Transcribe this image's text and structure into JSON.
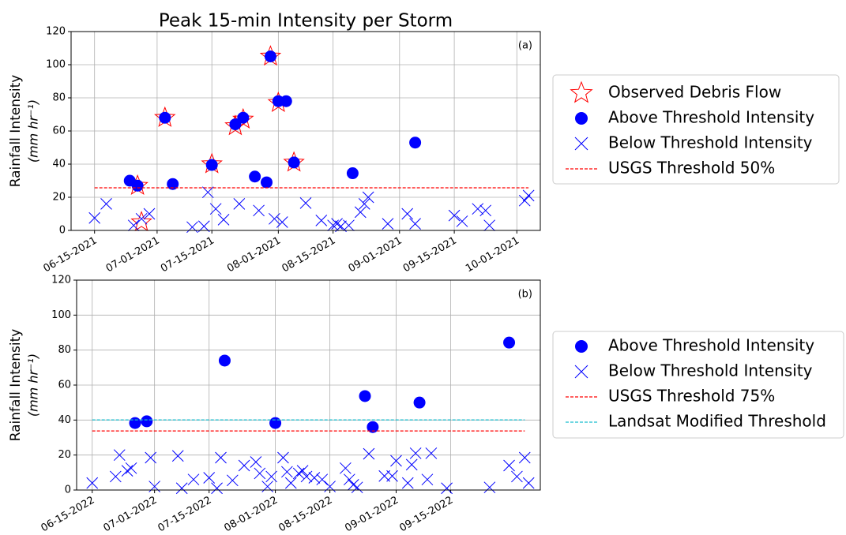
{
  "chart_data": [
    {
      "type": "scatter",
      "title": "Peak 15-min Intensity per Storm",
      "annotation": "(a)",
      "ylabel": "Rainfall Intensity",
      "ylabel_units": "(mm hr⁻¹)",
      "xlim": [
        "2021-06-09",
        "2021-10-07"
      ],
      "ylim": [
        0,
        120
      ],
      "yticks": [
        0,
        20,
        40,
        60,
        80,
        100,
        120
      ],
      "xticks": [
        {
          "value": "2021-06-15",
          "label": "06-15-2021"
        },
        {
          "value": "2021-07-01",
          "label": "07-01-2021"
        },
        {
          "value": "2021-07-15",
          "label": "07-15-2021"
        },
        {
          "value": "2021-08-01",
          "label": "08-01-2021"
        },
        {
          "value": "2021-08-15",
          "label": "08-15-2021"
        },
        {
          "value": "2021-09-01",
          "label": "09-01-2021"
        },
        {
          "value": "2021-09-15",
          "label": "09-15-2021"
        },
        {
          "value": "2021-10-01",
          "label": "10-01-2021"
        }
      ],
      "grid": true,
      "legend": "outside right",
      "series": [
        {
          "name": "Observed Debris Flow",
          "marker": "star",
          "color": "#ff0000",
          "x": [
            "2021-06-26",
            "2021-06-27",
            "2021-07-03",
            "2021-07-15",
            "2021-07-21",
            "2021-07-23",
            "2021-07-30",
            "2021-08-01",
            "2021-08-05"
          ],
          "values": [
            27,
            5,
            68,
            40,
            63,
            67,
            105,
            77,
            41
          ]
        },
        {
          "name": "Above Threshold Intensity",
          "marker": "circle",
          "color": "#0000ff",
          "x": [
            "2021-06-24",
            "2021-06-26",
            "2021-07-03",
            "2021-07-05",
            "2021-07-15",
            "2021-07-21",
            "2021-07-23",
            "2021-07-26",
            "2021-07-29",
            "2021-07-30",
            "2021-08-01",
            "2021-08-03",
            "2021-08-05",
            "2021-08-20",
            "2021-09-05"
          ],
          "values": [
            30,
            27,
            68,
            28,
            39.5,
            64,
            68,
            32.5,
            29,
            105,
            78,
            78,
            41,
            34.5,
            53
          ]
        },
        {
          "name": "Below Threshold Intensity",
          "marker": "x",
          "color": "#0000ff",
          "x": [
            "2021-06-15",
            "2021-06-18",
            "2021-06-25",
            "2021-06-27",
            "2021-06-29",
            "2021-07-10",
            "2021-07-13",
            "2021-07-14",
            "2021-07-16",
            "2021-07-18",
            "2021-07-22",
            "2021-07-27",
            "2021-07-31",
            "2021-08-02",
            "2021-08-08",
            "2021-08-12",
            "2021-08-15",
            "2021-08-16",
            "2021-08-17",
            "2021-08-19",
            "2021-08-22",
            "2021-08-23",
            "2021-08-24",
            "2021-08-29",
            "2021-09-03",
            "2021-09-05",
            "2021-09-15",
            "2021-09-17",
            "2021-09-21",
            "2021-09-23",
            "2021-09-24",
            "2021-10-03",
            "2021-10-04"
          ],
          "values": [
            7.5,
            16,
            3,
            7,
            10,
            2,
            2.5,
            23,
            13,
            6.5,
            16,
            12,
            7,
            5,
            16.5,
            6,
            3,
            4,
            2.5,
            3,
            11,
            16,
            20,
            4,
            10,
            4,
            9,
            5.5,
            13,
            12,
            3,
            18,
            21
          ]
        },
        {
          "name": "USGS Threshold 50%",
          "marker": "dash",
          "color": "#ff0000",
          "x": [
            "2021-06-15",
            "2021-10-04"
          ],
          "values": [
            25.7,
            25.7
          ]
        }
      ]
    },
    {
      "type": "scatter",
      "annotation": "(b)",
      "ylabel": "Rainfall Intensity",
      "ylabel_units": "(mm hr⁻¹)",
      "xlim": [
        "2022-06-11",
        "2022-10-08"
      ],
      "ylim": [
        0,
        120
      ],
      "yticks": [
        0,
        20,
        40,
        60,
        80,
        100,
        120
      ],
      "xticks": [
        {
          "value": "2022-06-15",
          "label": "06-15-2022"
        },
        {
          "value": "2022-07-01",
          "label": "07-01-2022"
        },
        {
          "value": "2022-07-15",
          "label": "07-15-2022"
        },
        {
          "value": "2022-08-01",
          "label": "08-01-2022"
        },
        {
          "value": "2022-08-15",
          "label": "08-15-2022"
        },
        {
          "value": "2022-09-01",
          "label": "09-01-2022"
        },
        {
          "value": "2022-09-15",
          "label": "09-15-2022"
        }
      ],
      "grid": true,
      "legend": "outside right",
      "series": [
        {
          "name": "Above Threshold Intensity",
          "marker": "circle",
          "color": "#0000ff",
          "x": [
            "2022-06-26",
            "2022-06-29",
            "2022-07-19",
            "2022-08-01",
            "2022-08-24",
            "2022-08-26",
            "2022-09-07",
            "2022-09-30"
          ],
          "values": [
            38.3,
            39.3,
            74,
            38.3,
            53.7,
            36,
            50,
            84.3
          ]
        },
        {
          "name": "Below Threshold Intensity",
          "marker": "x",
          "color": "#0000ff",
          "x": [
            "2022-06-15",
            "2022-06-21",
            "2022-06-22",
            "2022-06-24",
            "2022-06-25",
            "2022-06-30",
            "2022-07-01",
            "2022-07-07",
            "2022-07-08",
            "2022-07-11",
            "2022-07-15",
            "2022-07-17",
            "2022-07-18",
            "2022-07-21",
            "2022-07-24",
            "2022-07-27",
            "2022-07-28",
            "2022-07-30",
            "2022-07-31",
            "2022-08-03",
            "2022-08-04",
            "2022-08-05",
            "2022-08-07",
            "2022-08-08",
            "2022-08-09",
            "2022-08-11",
            "2022-08-13",
            "2022-08-15",
            "2022-08-19",
            "2022-08-20",
            "2022-08-21",
            "2022-08-22",
            "2022-08-25",
            "2022-08-29",
            "2022-08-31",
            "2022-09-01",
            "2022-09-04",
            "2022-09-05",
            "2022-09-06",
            "2022-09-09",
            "2022-09-10",
            "2022-09-14",
            "2022-09-25",
            "2022-09-30",
            "2022-10-02",
            "2022-10-04",
            "2022-10-05"
          ],
          "values": [
            4,
            7.7,
            20,
            11,
            12.5,
            18.5,
            2,
            19.5,
            1,
            6,
            7,
            1,
            18.5,
            5.5,
            14,
            16,
            9.5,
            2,
            7.7,
            18.5,
            10.4,
            4,
            9.5,
            11,
            7.7,
            7,
            6,
            2,
            12.5,
            6,
            3,
            1.5,
            20.7,
            8,
            8,
            16.7,
            4,
            14.5,
            21,
            6,
            21,
            1,
            1.5,
            14,
            7.7,
            18.5,
            4
          ]
        },
        {
          "name": "USGS Threshold 75%",
          "marker": "dash",
          "color": "#ff0000",
          "x": [
            "2022-06-15",
            "2022-10-04"
          ],
          "values": [
            33.8,
            33.8
          ]
        },
        {
          "name": "Landsat Modified Threshold",
          "marker": "dash",
          "color": "#17becf",
          "x": [
            "2022-06-15",
            "2022-10-04"
          ],
          "values": [
            40.1,
            40.1
          ]
        }
      ]
    }
  ]
}
